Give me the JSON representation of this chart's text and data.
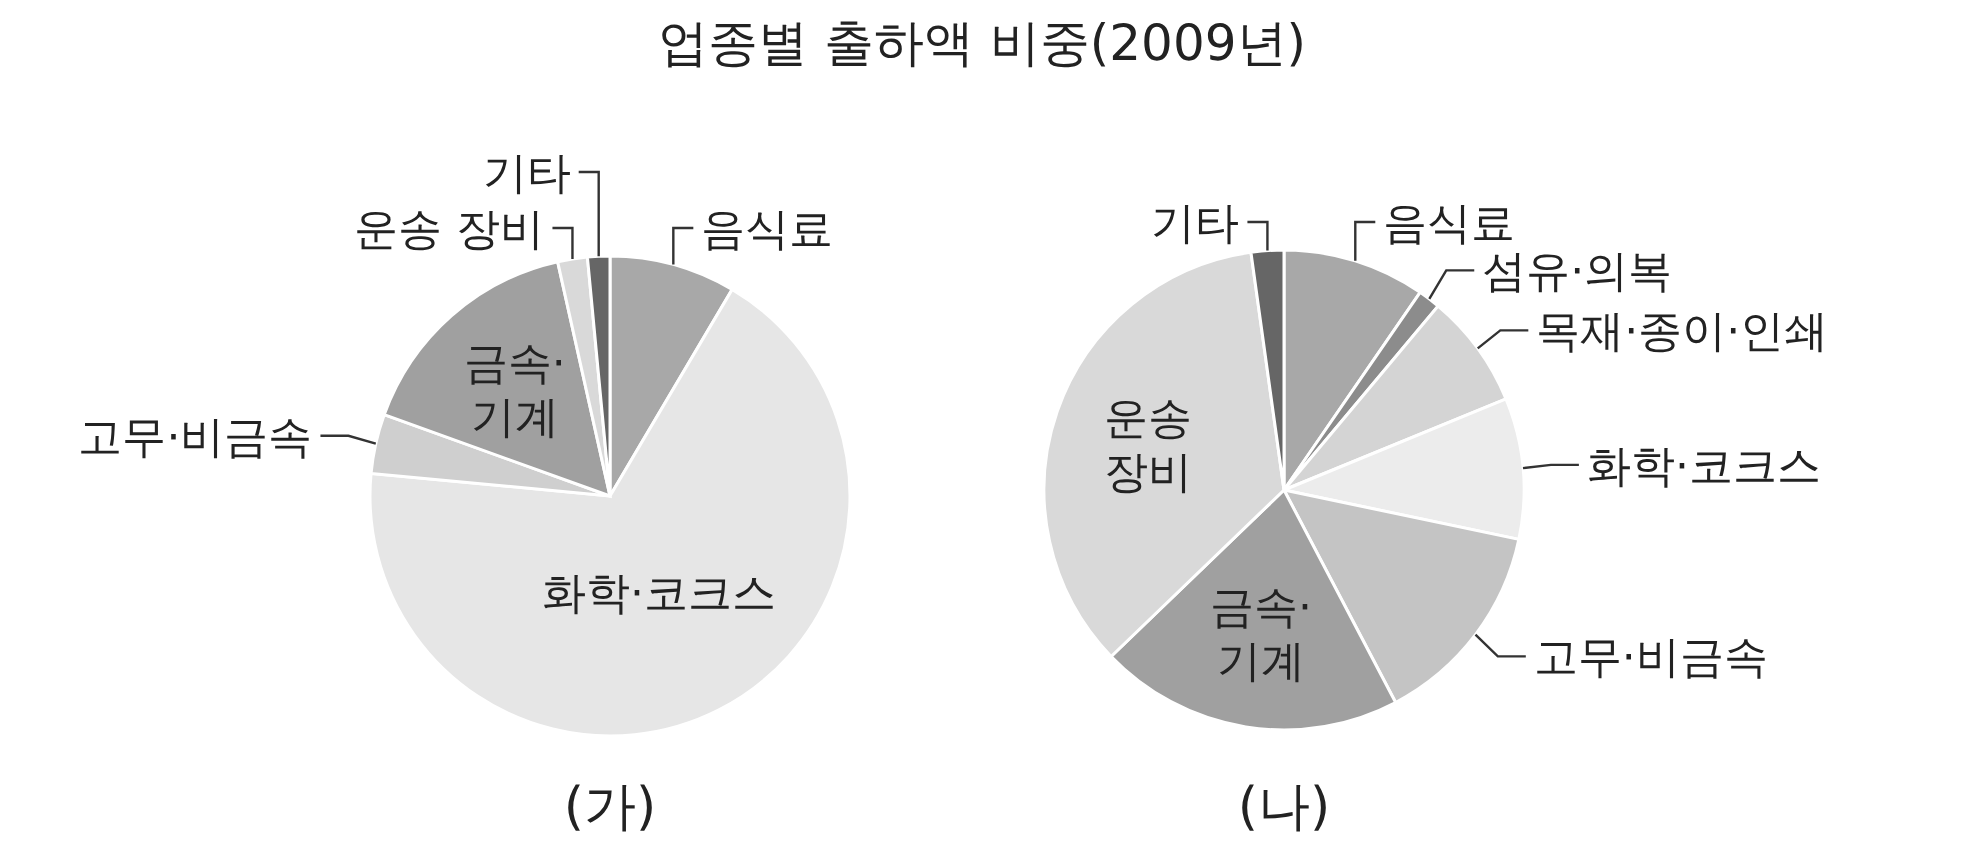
{
  "chart_data": [
    {
      "type": "pie",
      "title": "(가)",
      "annotations": [
        "업종별 출하액 비중(2009년)"
      ],
      "categories": [
        "음식료",
        "화학·코크스",
        "고무·비금속",
        "금속·기계",
        "운송 장비",
        "기타"
      ],
      "values": [
        8.5,
        68,
        4,
        16,
        2,
        1.5
      ],
      "colors": [
        "#a8a8a8",
        "#e6e6e6",
        "#cfcfcf",
        "#a0a0a0",
        "#d9d9d9",
        "#666666"
      ]
    },
    {
      "type": "pie",
      "title": "(나)",
      "categories": [
        "음식료",
        "섬유·의복",
        "목재·종이·인쇄",
        "화학·코크스",
        "고무·비금속",
        "금속·기계",
        "운송 장비",
        "기타"
      ],
      "values": [
        9.6,
        1.5,
        7.7,
        9.5,
        14,
        20.5,
        35,
        2.2
      ],
      "colors": [
        "#a8a8a8",
        "#8c8c8c",
        "#d4d4d4",
        "#ececec",
        "#c4c4c4",
        "#a0a0a0",
        "#d9d9d9",
        "#666666"
      ]
    }
  ]
}
